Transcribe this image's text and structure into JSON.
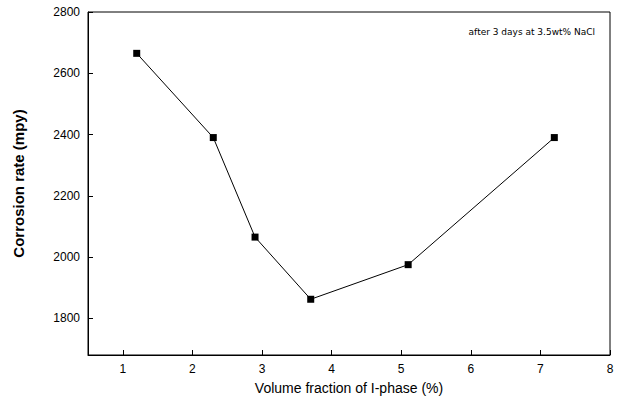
{
  "chart_data": {
    "type": "line",
    "x_label": "Volume fraction of I-phase (%)",
    "y_label": "Corrosion rate (mpy)",
    "annotations": [
      "after 3 days at 3.5wt% NaCl"
    ],
    "x": [
      1.2,
      2.3,
      2.9,
      3.7,
      5.1,
      7.2
    ],
    "values": [
      2665,
      2390,
      2065,
      1862,
      1975,
      2390
    ],
    "color": "#000000",
    "marker": "square",
    "line_style": "solid",
    "xlim": [
      0.5,
      8
    ],
    "xticks": [
      1,
      2,
      3,
      4,
      5,
      6,
      7,
      8
    ],
    "ylim": [
      1680,
      2800
    ],
    "yticks": [
      1800,
      2000,
      2200,
      2400,
      2600,
      2800
    ],
    "grid": false
  }
}
